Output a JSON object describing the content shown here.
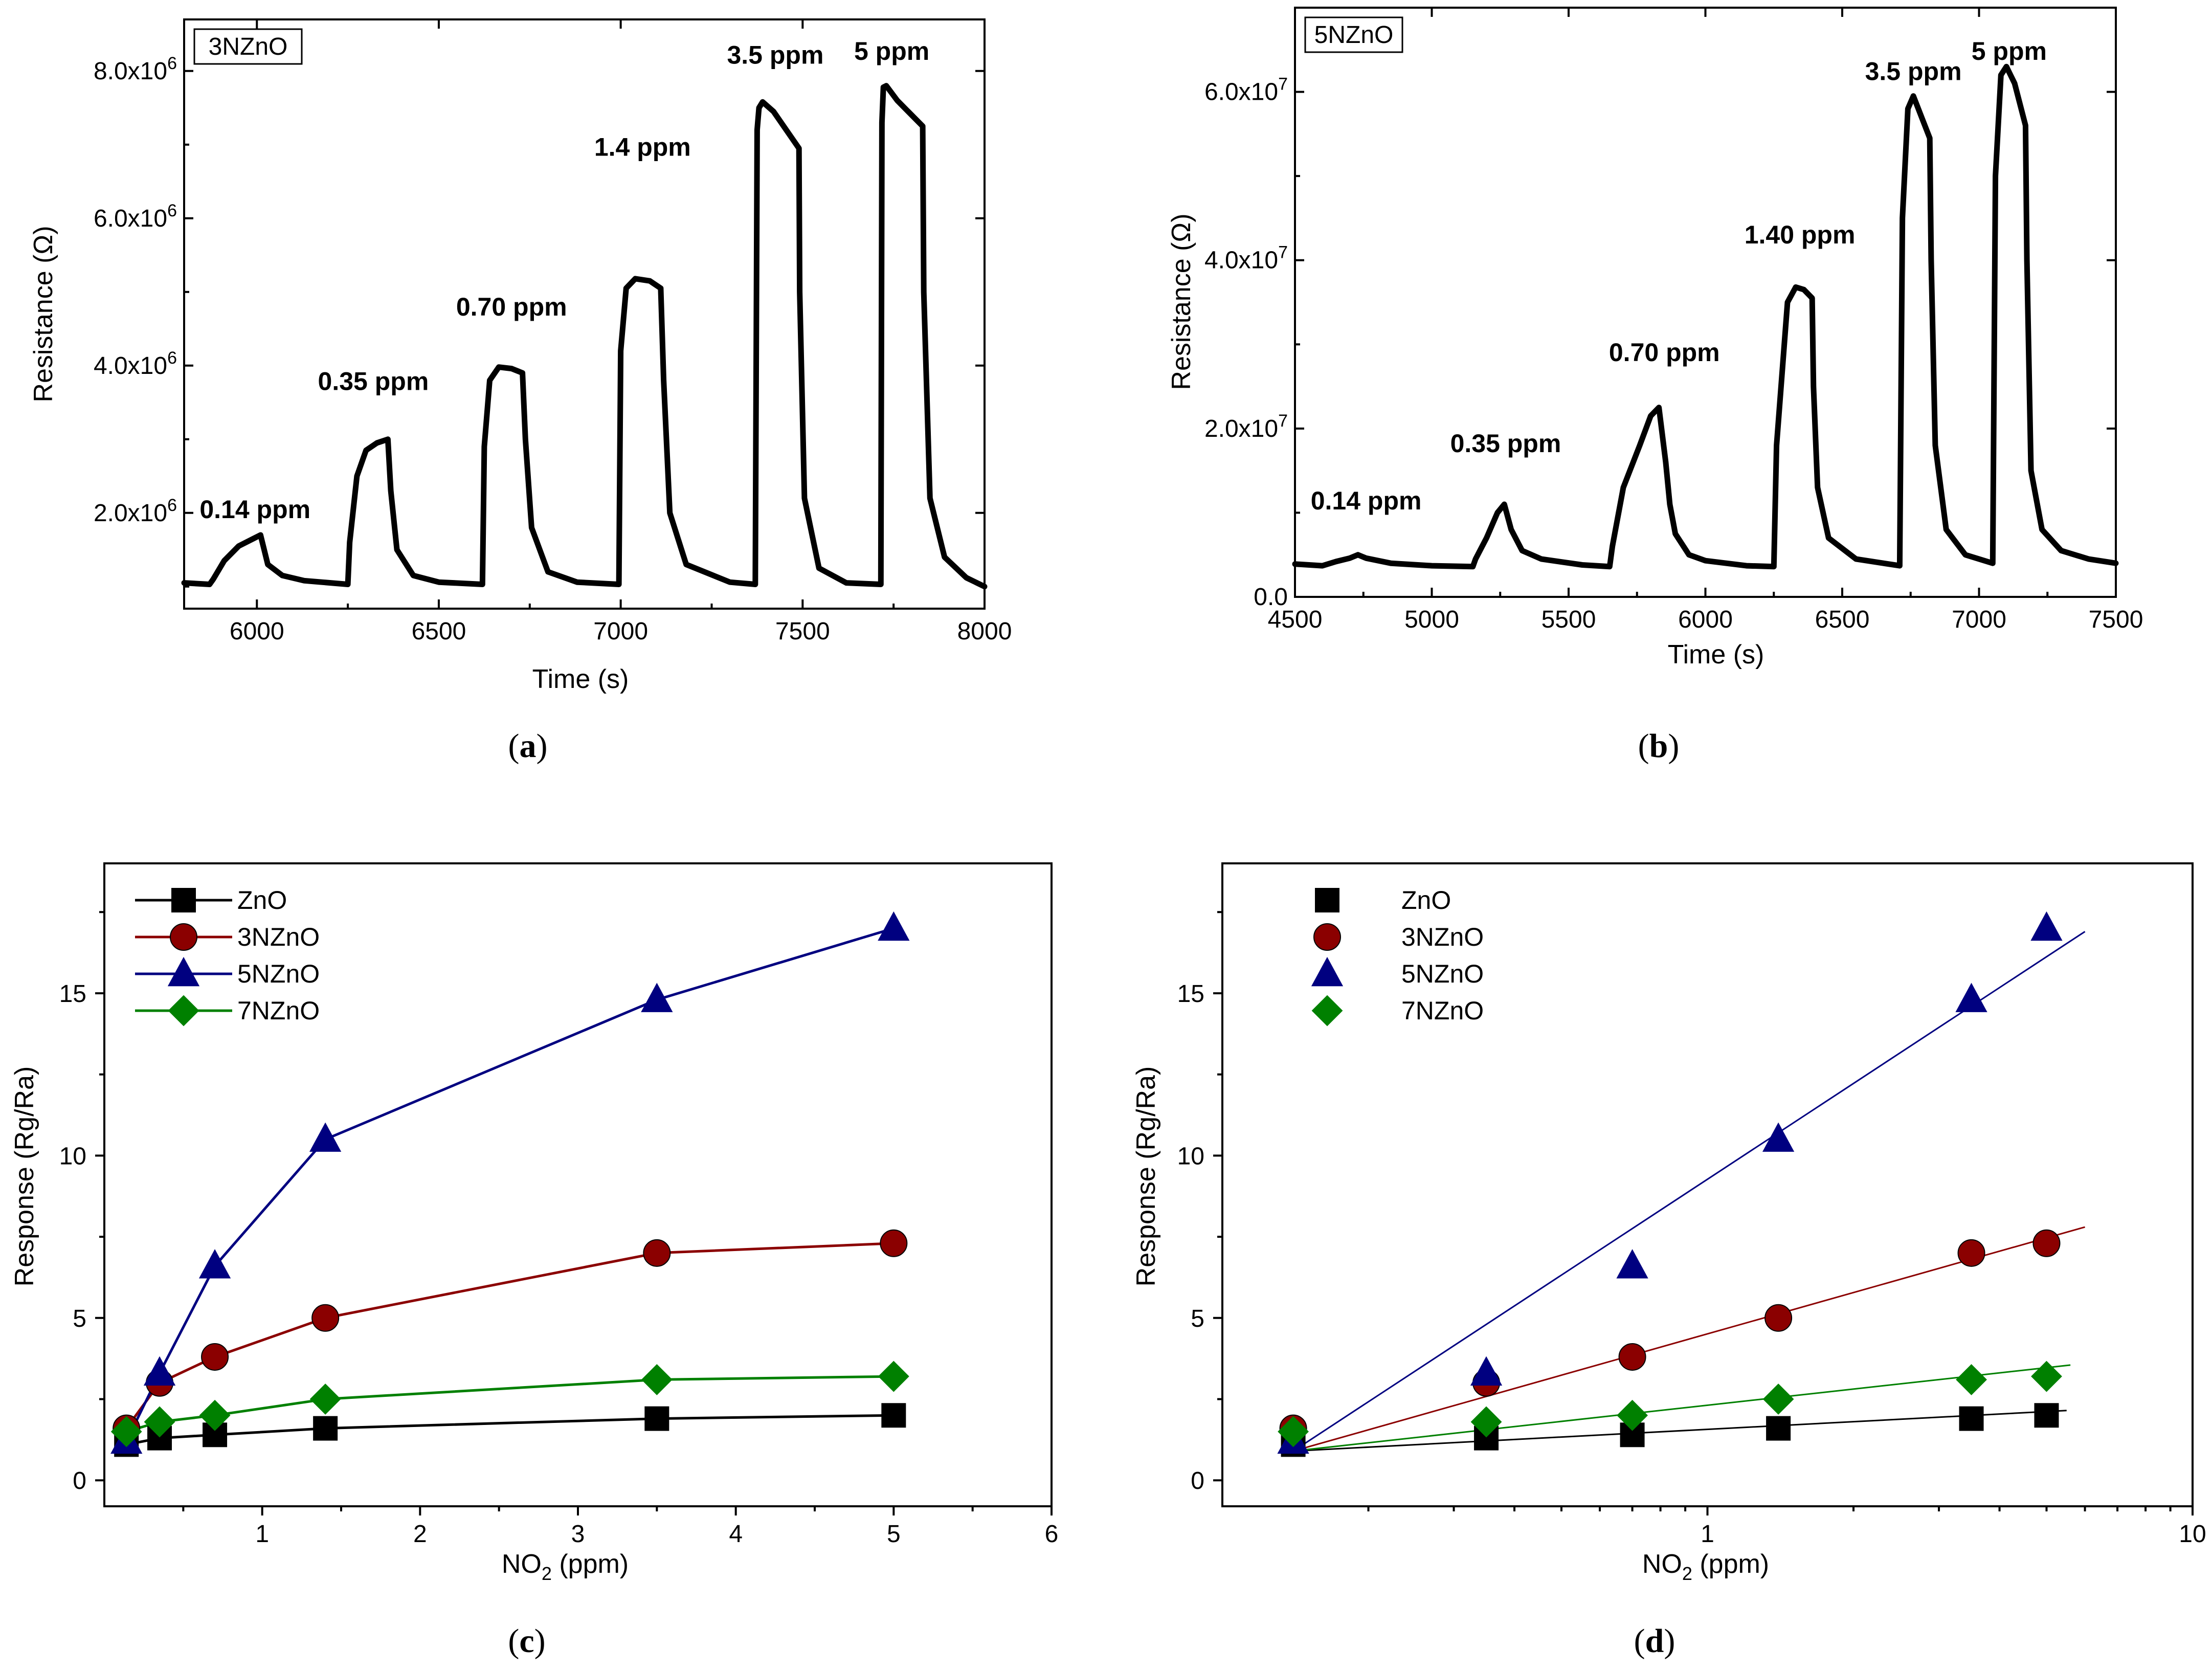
{
  "panels": [
    {
      "id": "a",
      "caption": "(a)",
      "caption_letter": "a",
      "chart_data": {
        "type": "line",
        "title": "",
        "inset_label": "3NZnO",
        "xlabel": "Time (s)",
        "ylabel": "Resistance (Ω)",
        "xlim": [
          5800,
          8000
        ],
        "ylim": [
          700000,
          8700000
        ],
        "x_ticks": [
          6000,
          6500,
          7000,
          7500,
          8000
        ],
        "x_tick_labels": [
          "6000",
          "6500",
          "7000",
          "7500",
          "8000"
        ],
        "y_ticks": [
          2000000,
          4000000,
          6000000,
          8000000
        ],
        "y_tick_labels": [
          {
            "mantissa": "2.0x10",
            "exp": "6"
          },
          {
            "mantissa": "4.0x10",
            "exp": "6"
          },
          {
            "mantissa": "6.0x10",
            "exp": "6"
          },
          {
            "mantissa": "8.0x10",
            "exp": "6"
          }
        ],
        "series": [
          {
            "name": "3NZnO resistance",
            "color": "#000000",
            "x": [
              5800,
              5870,
              5880,
              5910,
              5950,
              5990,
              6010,
              6030,
              6070,
              6130,
              6250,
              6255,
              6275,
              6300,
              6330,
              6360,
              6368,
              6385,
              6430,
              6500,
              6620,
              6625,
              6640,
              6665,
              6700,
              6730,
              6738,
              6755,
              6800,
              6880,
              6995,
              7000,
              7015,
              7040,
              7080,
              7110,
              7118,
              7135,
              7180,
              7300,
              7370,
              7375,
              7380,
              7390,
              7420,
              7490,
              7492,
              7505,
              7545,
              7620,
              7715,
              7718,
              7722,
              7730,
              7760,
              7830,
              7833,
              7850,
              7890,
              7950,
              8000
            ],
            "y": [
              1050000,
              1030000,
              1100000,
              1350000,
              1550000,
              1650000,
              1700000,
              1300000,
              1150000,
              1080000,
              1030000,
              1600000,
              2500000,
              2850000,
              2950000,
              3000000,
              2300000,
              1500000,
              1150000,
              1060000,
              1030000,
              2900000,
              3800000,
              3980000,
              3960000,
              3900000,
              3000000,
              1800000,
              1200000,
              1060000,
              1030000,
              4200000,
              5050000,
              5180000,
              5150000,
              5050000,
              3800000,
              2000000,
              1300000,
              1060000,
              1030000,
              7200000,
              7500000,
              7580000,
              7450000,
              6950000,
              5000000,
              2200000,
              1250000,
              1050000,
              1030000,
              7300000,
              7780000,
              7800000,
              7600000,
              7250000,
              5000000,
              2200000,
              1400000,
              1120000,
              1000000
            ]
          }
        ],
        "annotations": [
          {
            "text": "0.14 ppm",
            "x": 5995,
            "y": 1930000
          },
          {
            "text": "0.35 ppm",
            "x": 6320,
            "y": 3670000
          },
          {
            "text": "0.70 ppm",
            "x": 6700,
            "y": 4680000
          },
          {
            "text": "1.4 ppm",
            "x": 7060,
            "y": 6850000
          },
          {
            "text": "3.5 ppm",
            "x": 7425,
            "y": 8100000
          },
          {
            "text": "5 ppm",
            "x": 7745,
            "y": 8150000
          }
        ]
      }
    },
    {
      "id": "b",
      "caption": "(b)",
      "caption_letter": "b",
      "chart_data": {
        "type": "line",
        "title": "",
        "inset_label": "5NZnO",
        "xlabel": "Time (s)",
        "ylabel": "Resistance (Ω)",
        "xlim": [
          4500,
          7500
        ],
        "ylim": [
          0,
          70000000
        ],
        "x_ticks": [
          4500,
          5000,
          5500,
          6000,
          6500,
          7000,
          7500
        ],
        "x_tick_labels": [
          "4500",
          "5000",
          "5500",
          "6000",
          "6500",
          "7000",
          "7500"
        ],
        "y_ticks": [
          0,
          20000000,
          40000000,
          60000000
        ],
        "y_tick_labels": [
          {
            "mantissa": "0.0",
            "exp": ""
          },
          {
            "mantissa": "2.0x10",
            "exp": "7"
          },
          {
            "mantissa": "4.0x10",
            "exp": "7"
          },
          {
            "mantissa": "6.0x10",
            "exp": "7"
          }
        ],
        "series": [
          {
            "name": "5NZnO resistance",
            "color": "#000000",
            "x": [
              4500,
              4600,
              4650,
              4700,
              4730,
              4760,
              4850,
              5000,
              5150,
              5160,
              5200,
              5240,
              5265,
              5290,
              5330,
              5400,
              5550,
              5650,
              5660,
              5700,
              5760,
              5800,
              5830,
              5855,
              5870,
              5890,
              5940,
              6000,
              6150,
              6250,
              6260,
              6300,
              6330,
              6360,
              6390,
              6395,
              6410,
              6450,
              6550,
              6710,
              6720,
              6740,
              6760,
              6790,
              6820,
              6825,
              6840,
              6880,
              6950,
              7050,
              7060,
              7080,
              7100,
              7130,
              7170,
              7175,
              7190,
              7230,
              7300,
              7400,
              7500
            ],
            "y": [
              3900000,
              3700000,
              4200000,
              4600000,
              5000000,
              4600000,
              4000000,
              3700000,
              3600000,
              4500000,
              7000000,
              10000000,
              11000000,
              8000000,
              5500000,
              4500000,
              3800000,
              3600000,
              6000000,
              13000000,
              18000000,
              21500000,
              22500000,
              16000000,
              11000000,
              7500000,
              5000000,
              4300000,
              3700000,
              3600000,
              18000000,
              35000000,
              36800000,
              36500000,
              35500000,
              25000000,
              13000000,
              7000000,
              4500000,
              3700000,
              45000000,
              58000000,
              59500000,
              57000000,
              54500000,
              40000000,
              18000000,
              8000000,
              5000000,
              4000000,
              50000000,
              62000000,
              63000000,
              61000000,
              56000000,
              40000000,
              15000000,
              8000000,
              5500000,
              4500000,
              4000000
            ]
          }
        ],
        "annotations": [
          {
            "text": "0.14 ppm",
            "x": 4760,
            "y": 10400000
          },
          {
            "text": "0.35 ppm",
            "x": 5270,
            "y": 17200000
          },
          {
            "text": "0.70 ppm",
            "x": 5850,
            "y": 28000000
          },
          {
            "text": "1.40 ppm",
            "x": 6345,
            "y": 42000000
          },
          {
            "text": "3.5 ppm",
            "x": 6760,
            "y": 61400000
          },
          {
            "text": "5 ppm",
            "x": 7110,
            "y": 63800000
          }
        ]
      }
    },
    {
      "id": "c",
      "caption": "(c)",
      "caption_letter": "c",
      "chart_data": {
        "type": "line",
        "title": "",
        "xlabel_main": "NO",
        "xlabel_sub": "2",
        "xlabel_rest": " (ppm)",
        "ylabel": "Response (Rg/Ra)",
        "xscale": "linear",
        "xlim": [
          0,
          6
        ],
        "ylim": [
          -0.8,
          19
        ],
        "x_ticks": [
          1,
          2,
          3,
          4,
          5,
          6
        ],
        "x_tick_labels": [
          "1",
          "2",
          "3",
          "4",
          "5",
          "6"
        ],
        "y_ticks": [
          0,
          5,
          10,
          15
        ],
        "y_tick_labels": [
          "0",
          "5",
          "10",
          "15"
        ],
        "legend_position": "top-left",
        "x": [
          0.14,
          0.35,
          0.7,
          1.4,
          3.5,
          5
        ],
        "series": [
          {
            "name": "ZnO",
            "marker": "square",
            "color": "#000000",
            "values": [
              1.1,
              1.3,
              1.4,
              1.6,
              1.9,
              2.0
            ]
          },
          {
            "name": "3NZnO",
            "marker": "circle",
            "color": "#8b0000",
            "values": [
              1.6,
              3.0,
              3.8,
              5.0,
              7.0,
              7.3
            ]
          },
          {
            "name": "5NZnO",
            "marker": "triangle",
            "color": "#000080",
            "values": [
              1.2,
              3.3,
              6.6,
              10.5,
              14.8,
              17.0
            ]
          },
          {
            "name": "7NZnO",
            "marker": "diamond",
            "color": "#008000",
            "values": [
              1.5,
              1.8,
              2.0,
              2.5,
              3.1,
              3.2
            ]
          }
        ]
      }
    },
    {
      "id": "d",
      "caption": "(d)",
      "caption_letter": "d",
      "chart_data": {
        "type": "scatter",
        "title": "",
        "xlabel_main": "NO",
        "xlabel_sub": "2",
        "xlabel_rest": " (ppm)",
        "ylabel": "Response (Rg/Ra)",
        "xscale": "log",
        "xlim": [
          0.1,
          10
        ],
        "ylim": [
          -0.8,
          19
        ],
        "x_ticks": [
          1,
          10
        ],
        "x_tick_labels": [
          "1",
          "10"
        ],
        "y_ticks": [
          0,
          5,
          10,
          15
        ],
        "y_tick_labels": [
          "0",
          "5",
          "10",
          "15"
        ],
        "legend_position": "top-left",
        "x": [
          0.14,
          0.35,
          0.7,
          1.4,
          3.5,
          5
        ],
        "series": [
          {
            "name": "ZnO",
            "marker": "square",
            "color": "#000000",
            "values": [
              1.1,
              1.3,
              1.4,
              1.6,
              1.9,
              2.0
            ],
            "fit": {
              "x": [
                0.14,
                5.5
              ],
              "y": [
                0.9,
                2.15
              ]
            }
          },
          {
            "name": "3NZnO",
            "marker": "circle",
            "color": "#8b0000",
            "values": [
              1.6,
              3.0,
              3.8,
              5.0,
              7.0,
              7.3
            ],
            "fit": {
              "x": [
                0.14,
                6.0
              ],
              "y": [
                0.9,
                7.8
              ]
            }
          },
          {
            "name": "5NZnO",
            "marker": "triangle",
            "color": "#000080",
            "values": [
              1.2,
              3.3,
              6.6,
              10.5,
              14.8,
              17.0
            ],
            "fit": {
              "x": [
                0.14,
                6.0
              ],
              "y": [
                0.9,
                16.9
              ]
            }
          },
          {
            "name": "7NZnO",
            "marker": "diamond",
            "color": "#008000",
            "values": [
              1.5,
              1.8,
              2.0,
              2.5,
              3.1,
              3.2
            ],
            "fit": {
              "x": [
                0.14,
                5.6
              ],
              "y": [
                0.9,
                3.55
              ]
            }
          }
        ]
      }
    }
  ]
}
